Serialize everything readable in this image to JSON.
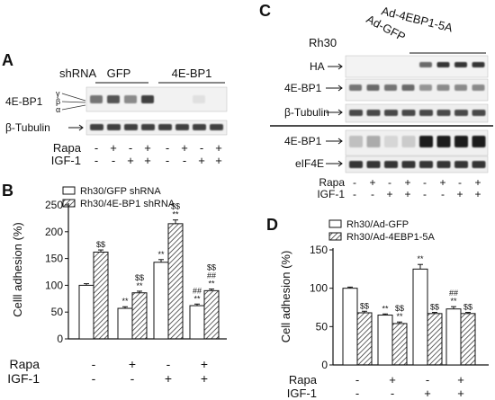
{
  "panels": {
    "A": {
      "letter": "A",
      "shrna_label": "shRNA",
      "groups": [
        "GFP",
        "4E-BP1"
      ],
      "rows": [
        "4E-BP1",
        "β-Tubulin"
      ],
      "isoforms": [
        "γ",
        "β",
        "α"
      ],
      "treatments": [
        {
          "name": "Rapa",
          "signs": [
            "-",
            "+",
            "-",
            "+",
            "-",
            "+",
            "-",
            "+"
          ]
        },
        {
          "name": "IGF-1",
          "signs": [
            "-",
            "-",
            "+",
            "+",
            "-",
            "-",
            "+",
            "+"
          ]
        }
      ],
      "band_intensity": {
        "4E-BP1": [
          0.55,
          0.7,
          0.45,
          0.8,
          0.0,
          0.0,
          0.05,
          0.0
        ],
        "β-Tubulin": [
          0.8,
          0.8,
          0.8,
          0.8,
          0.8,
          0.8,
          0.8,
          0.8
        ]
      }
    },
    "B": {
      "letter": "B",
      "treatments": [
        {
          "name": "Rapa",
          "signs": [
            "-",
            "+",
            "-",
            "+"
          ]
        },
        {
          "name": "IGF-1",
          "signs": [
            "-",
            "-",
            "+",
            "+"
          ]
        }
      ]
    },
    "C": {
      "letter": "C",
      "cell_line": "Rh30",
      "constructs": [
        "Ad-GFP",
        "Ad-4EBP1-5A"
      ],
      "rows": [
        "HA",
        "4E-BP1",
        "β-Tubulin",
        "4E-BP1",
        "eIF4E"
      ],
      "treatments": [
        {
          "name": "Rapa",
          "signs": [
            "-",
            "+",
            "-",
            "+",
            "-",
            "+",
            "-",
            "+"
          ]
        },
        {
          "name": "IGF-1",
          "signs": [
            "-",
            "-",
            "+",
            "+",
            "-",
            "-",
            "+",
            "+"
          ]
        }
      ],
      "band_intensity": {
        "HA": [
          0.0,
          0.0,
          0.0,
          0.0,
          0.6,
          0.85,
          0.85,
          0.85
        ],
        "4E-BP1 (top)": [
          0.55,
          0.6,
          0.55,
          0.6,
          0.4,
          0.45,
          0.45,
          0.45
        ],
        "β-Tubulin": [
          0.75,
          0.75,
          0.75,
          0.75,
          0.75,
          0.75,
          0.75,
          0.75
        ],
        "4E-BP1 (bottom)": [
          0.2,
          0.3,
          0.1,
          0.15,
          0.95,
          0.95,
          0.95,
          0.95
        ],
        "eIF4E": [
          0.85,
          0.85,
          0.85,
          0.85,
          0.85,
          0.85,
          0.85,
          0.85
        ]
      }
    },
    "D": {
      "letter": "D",
      "treatments": [
        {
          "name": "Rapa",
          "signs": [
            "-",
            "+",
            "-",
            "+"
          ]
        },
        {
          "name": "IGF-1",
          "signs": [
            "-",
            "-",
            "+",
            "+"
          ]
        }
      ]
    }
  },
  "chart_data": [
    {
      "panel": "B",
      "type": "bar",
      "ylabel": "Celll adhesion (%)",
      "ylim": [
        0,
        250
      ],
      "yticks": [
        0,
        50,
        100,
        150,
        200,
        250
      ],
      "categories": [
        "-/-",
        "+/-",
        "-/+",
        "+/+"
      ],
      "series": [
        {
          "name": "Rh30/GFP shRNA",
          "fill": "open",
          "values": [
            100,
            57,
            143,
            62
          ],
          "errors": [
            3,
            3,
            5,
            3
          ]
        },
        {
          "name": "Rh30/4E-BP1 shRNA",
          "fill": "hatched",
          "values": [
            162,
            86,
            215,
            90
          ],
          "errors": [
            4,
            3,
            7,
            3
          ]
        }
      ],
      "annotations": [
        [
          "",
          "**",
          "**",
          "##\n**"
        ],
        [
          "$$",
          "$$\n**",
          "$$\n**",
          "$$\n##\n**"
        ]
      ]
    },
    {
      "panel": "D",
      "type": "bar",
      "ylabel": "Cell adhesion (%)",
      "ylim": [
        0,
        150
      ],
      "yticks": [
        0,
        50,
        100,
        150
      ],
      "categories": [
        "-/-",
        "+/-",
        "-/+",
        "+/+"
      ],
      "series": [
        {
          "name": "Rh30/Ad-GFP",
          "fill": "open",
          "values": [
            100,
            65,
            125,
            73
          ],
          "errors": [
            1.5,
            1.5,
            6,
            3
          ]
        },
        {
          "name": "Rh30/Ad-4EBP1-5A",
          "fill": "hatched",
          "values": [
            68,
            54,
            67,
            67
          ],
          "errors": [
            2,
            2,
            1.5,
            1.5
          ]
        }
      ],
      "annotations": [
        [
          "",
          "**",
          "**",
          "##\n**"
        ],
        [
          "$$",
          "$$\n**",
          "$$",
          "$$"
        ]
      ]
    }
  ]
}
